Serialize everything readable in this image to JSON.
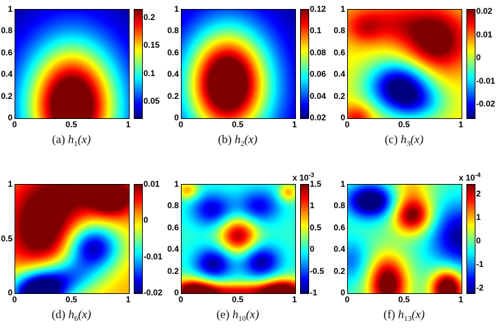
{
  "figure": {
    "background": "#ffffff",
    "colormap": "jet",
    "x_axis_ticks_default": [
      "0",
      "0.5",
      "1"
    ],
    "colorbar_dark_blue": "#00008f",
    "colorbar_dark_red": "#7f0000"
  },
  "chart_data": [
    {
      "type": "heatmap",
      "name": "h1(x)",
      "caption": {
        "prefix": "(a) ",
        "func": "h",
        "sub": "1",
        "arg": "(x)"
      },
      "x_range": [
        0,
        1
      ],
      "y_range": [
        0,
        1
      ],
      "xticks": [
        {
          "v": 0,
          "label": "0"
        },
        {
          "v": 0.5,
          "label": "0.5"
        },
        {
          "v": 1,
          "label": "1"
        }
      ],
      "yticks": [
        {
          "v": 1,
          "label": "1"
        },
        {
          "v": 0.8,
          "label": "0.8"
        },
        {
          "v": 0.6,
          "label": "0.6"
        },
        {
          "v": 0.4,
          "label": "0.4"
        },
        {
          "v": 0.2,
          "label": "0.2"
        },
        {
          "v": 0,
          "label": "0"
        }
      ],
      "colorbar": {
        "vmin": 0.02,
        "vmax": 0.215,
        "exponent": null,
        "ticks": [
          {
            "v": 0.2,
            "label": "0.2"
          },
          {
            "v": 0.15,
            "label": "0.15"
          },
          {
            "v": 0.1,
            "label": "0.1"
          },
          {
            "v": 0.05,
            "label": "0.05"
          }
        ]
      },
      "field": {
        "base": 0.02,
        "gaussians": [
          [
            0.5,
            0.12,
            0.24,
            0.34,
            0.14
          ],
          [
            0.5,
            0.1,
            0.36,
            0.5,
            0.1
          ]
        ]
      }
    },
    {
      "type": "heatmap",
      "name": "h2(x)",
      "caption": {
        "prefix": "(b) ",
        "func": "h",
        "sub": "2",
        "arg": "(x)"
      },
      "x_range": [
        0,
        1
      ],
      "y_range": [
        0,
        1
      ],
      "xticks": [
        {
          "v": 0,
          "label": "0"
        },
        {
          "v": 0.5,
          "label": "0.5"
        },
        {
          "v": 1,
          "label": "1"
        }
      ],
      "yticks": [
        {
          "v": 1,
          "label": "1"
        },
        {
          "v": 0.8,
          "label": "0.8"
        },
        {
          "v": 0.6,
          "label": "0.6"
        },
        {
          "v": 0.4,
          "label": "0.4"
        },
        {
          "v": 0.2,
          "label": "0.2"
        },
        {
          "v": 0,
          "label": "0"
        }
      ],
      "colorbar": {
        "vmin": 0.02,
        "vmax": 0.12,
        "exponent": null,
        "ticks": [
          {
            "v": 0.12,
            "label": "0.12"
          },
          {
            "v": 0.1,
            "label": "0.1"
          },
          {
            "v": 0.08,
            "label": "0.08"
          },
          {
            "v": 0.06,
            "label": "0.06"
          },
          {
            "v": 0.04,
            "label": "0.04"
          },
          {
            "v": 0.02,
            "label": "0.02"
          }
        ]
      },
      "field": {
        "base": 0.02,
        "gaussians": [
          [
            0.4,
            0.33,
            0.22,
            0.3,
            0.075
          ],
          [
            0.42,
            0.28,
            0.34,
            0.46,
            0.05
          ]
        ]
      }
    },
    {
      "type": "heatmap",
      "name": "h3(x)",
      "caption": {
        "prefix": "(c) ",
        "func": "h",
        "sub": "3",
        "arg": "(x)"
      },
      "x_range": [
        0,
        1
      ],
      "y_range": [
        0,
        1
      ],
      "xticks": [
        {
          "v": 0,
          "label": "0"
        },
        {
          "v": 0.5,
          "label": "0.5"
        },
        {
          "v": 1,
          "label": "1"
        }
      ],
      "yticks": [
        {
          "v": 1,
          "label": "1"
        },
        {
          "v": 0.8,
          "label": "0.8"
        },
        {
          "v": 0.6,
          "label": "0.6"
        },
        {
          "v": 0.4,
          "label": "0.4"
        },
        {
          "v": 0.2,
          "label": "0.2"
        },
        {
          "v": 0,
          "label": "0"
        }
      ],
      "colorbar": {
        "vmin": -0.026,
        "vmax": 0.021,
        "exponent": null,
        "ticks": [
          {
            "v": 0.02,
            "label": "0.02"
          },
          {
            "v": 0.01,
            "label": "0.01"
          },
          {
            "v": 0,
            "label": "0"
          },
          {
            "v": -0.01,
            "label": "-0.01"
          },
          {
            "v": -0.02,
            "label": "-0.02"
          }
        ]
      },
      "field": {
        "base": 0.004,
        "gaussians": [
          [
            0.78,
            0.7,
            0.2,
            0.2,
            0.02
          ],
          [
            0.35,
            0.88,
            0.3,
            0.13,
            0.011
          ],
          [
            0.15,
            0.82,
            0.1,
            0.1,
            0.006
          ],
          [
            0.45,
            0.3,
            0.2,
            0.16,
            -0.03
          ],
          [
            0.6,
            0.13,
            0.18,
            0.12,
            -0.013
          ],
          [
            0.08,
            0.0,
            0.1,
            0.09,
            0.012
          ]
        ]
      }
    },
    {
      "type": "heatmap",
      "name": "h6(x)",
      "caption": {
        "prefix": "(d) ",
        "func": "h",
        "sub": "6",
        "arg": "(x)"
      },
      "x_range": [
        0,
        1
      ],
      "y_range": [
        0,
        1
      ],
      "xticks": [
        {
          "v": 0,
          "label": "0"
        },
        {
          "v": 0.5,
          "label": "0.5"
        },
        {
          "v": 1,
          "label": "1"
        }
      ],
      "yticks": [
        {
          "v": 1,
          "label": "1"
        },
        {
          "v": 0.5,
          "label": "0.5"
        },
        {
          "v": 0,
          "label": "0"
        }
      ],
      "colorbar": {
        "vmin": -0.02,
        "vmax": 0.01,
        "exponent": null,
        "ticks": [
          {
            "v": 0.01,
            "label": "0.01"
          },
          {
            "v": 0,
            "label": "0"
          },
          {
            "v": -0.01,
            "label": "-0.01"
          },
          {
            "v": -0.02,
            "label": "-0.02"
          }
        ]
      },
      "field": {
        "base": 0.001,
        "gaussians": [
          [
            0.85,
            0.88,
            0.14,
            0.12,
            0.012
          ],
          [
            0.25,
            0.6,
            0.22,
            0.26,
            0.013
          ],
          [
            0.55,
            0.95,
            0.3,
            0.15,
            0.007
          ],
          [
            0.68,
            0.42,
            0.17,
            0.15,
            -0.02
          ],
          [
            0.2,
            0.0,
            0.17,
            0.13,
            -0.026
          ],
          [
            0.45,
            0.15,
            0.2,
            0.12,
            -0.012
          ]
        ]
      }
    },
    {
      "type": "heatmap",
      "name": "h10(x)",
      "caption": {
        "prefix": "(e) ",
        "func": "h",
        "sub": "10",
        "arg": "(x)"
      },
      "x_range": [
        0,
        1
      ],
      "y_range": [
        0,
        1
      ],
      "xticks": [
        {
          "v": 0,
          "label": "0"
        },
        {
          "v": 0.5,
          "label": "0.5"
        },
        {
          "v": 1,
          "label": "1"
        }
      ],
      "yticks": [
        {
          "v": 1,
          "label": "1"
        },
        {
          "v": 0.8,
          "label": "0.8"
        },
        {
          "v": 0.6,
          "label": "0.6"
        },
        {
          "v": 0.4,
          "label": "0.4"
        },
        {
          "v": 0.2,
          "label": "0.2"
        },
        {
          "v": 0,
          "label": "0"
        }
      ],
      "colorbar": {
        "vmin": -1,
        "vmax": 1.5,
        "exponent": {
          "base": "x 10",
          "sup": "-3"
        },
        "ticks": [
          {
            "v": 1.5,
            "label": "1.5"
          },
          {
            "v": 1,
            "label": "1"
          },
          {
            "v": 0.5,
            "label": "0.5"
          },
          {
            "v": 0,
            "label": "0"
          },
          {
            "v": -0.5,
            "label": "-0.5"
          },
          {
            "v": -1,
            "label": "-1"
          }
        ]
      },
      "field": {
        "base": 0.05,
        "gaussians": [
          [
            0.5,
            0.53,
            0.12,
            0.12,
            1.35
          ],
          [
            0.27,
            0.77,
            0.13,
            0.11,
            -0.85
          ],
          [
            0.68,
            0.8,
            0.13,
            0.11,
            -0.8
          ],
          [
            0.28,
            0.27,
            0.12,
            0.11,
            -1.0
          ],
          [
            0.7,
            0.29,
            0.12,
            0.11,
            -1.0
          ],
          [
            0.1,
            0.0,
            0.14,
            0.09,
            1.7
          ],
          [
            0.5,
            0.0,
            0.28,
            0.07,
            1.2
          ],
          [
            0.9,
            0.0,
            0.14,
            0.09,
            1.7
          ],
          [
            0.05,
            0.95,
            0.07,
            0.06,
            0.75
          ],
          [
            0.94,
            0.93,
            0.06,
            0.06,
            0.75
          ]
        ]
      }
    },
    {
      "type": "heatmap",
      "name": "h13(x)",
      "caption": {
        "prefix": "(f) ",
        "func": "h",
        "sub": "13",
        "arg": "(x)"
      },
      "x_range": [
        0,
        1
      ],
      "y_range": [
        0,
        1
      ],
      "xticks": [
        {
          "v": 0,
          "label": "0"
        },
        {
          "v": 0.5,
          "label": "0.5"
        },
        {
          "v": 1,
          "label": "1"
        }
      ],
      "yticks": [
        {
          "v": 1,
          "label": "1"
        },
        {
          "v": 0.8,
          "label": "0.8"
        },
        {
          "v": 0.6,
          "label": "0.6"
        },
        {
          "v": 0.4,
          "label": "0.4"
        },
        {
          "v": 0.2,
          "label": "0.2"
        },
        {
          "v": 0,
          "label": "0"
        }
      ],
      "colorbar": {
        "vmin": -2.2,
        "vmax": 2.4,
        "exponent": {
          "base": "x 10",
          "sup": "-4"
        },
        "ticks": [
          {
            "v": 2,
            "label": "2"
          },
          {
            "v": 1,
            "label": "1"
          },
          {
            "v": 0,
            "label": "0"
          },
          {
            "v": -1,
            "label": "-1"
          },
          {
            "v": -2,
            "label": "-2"
          }
        ]
      },
      "field": {
        "base": -0.1,
        "gaussians": [
          [
            0.2,
            0.85,
            0.15,
            0.11,
            -2.6
          ],
          [
            0.57,
            0.72,
            0.12,
            0.12,
            2.7
          ],
          [
            1.0,
            0.52,
            0.2,
            0.22,
            -2.0
          ],
          [
            0.35,
            0.08,
            0.12,
            0.18,
            2.9
          ],
          [
            0.88,
            0.04,
            0.1,
            0.12,
            3.4
          ],
          [
            0.02,
            0.3,
            0.12,
            0.15,
            -1.0
          ],
          [
            0.55,
            1.0,
            0.13,
            0.12,
            0.9
          ]
        ]
      }
    }
  ]
}
